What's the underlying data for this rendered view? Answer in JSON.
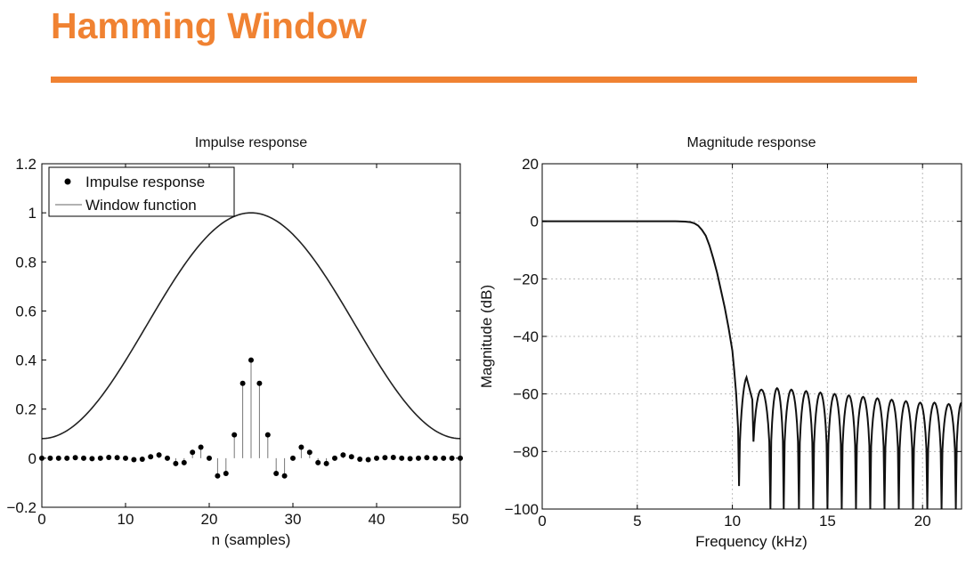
{
  "slide": {
    "title": "Hamming Window",
    "accent_color": "#f08232"
  },
  "chart_data": [
    {
      "type": "line",
      "title": "Impulse response",
      "xlabel": "n (samples)",
      "ylabel": "",
      "xlim": [
        0,
        50
      ],
      "ylim": [
        -0.2,
        1.2
      ],
      "xticks": [
        "0",
        "10",
        "20",
        "30",
        "40",
        "50"
      ],
      "yticks": [
        "−0.2",
        "0",
        "0.2",
        "0.4",
        "0.6",
        "0.8",
        "1",
        "1.2"
      ],
      "grid": false,
      "legend": {
        "placement": "top-left",
        "entries": [
          "Impulse response",
          "Window function"
        ]
      },
      "series": [
        {
          "name": "Impulse response",
          "style": "stem",
          "x": [
            0,
            1,
            2,
            3,
            4,
            5,
            6,
            7,
            8,
            9,
            10,
            11,
            12,
            13,
            14,
            15,
            16,
            17,
            18,
            19,
            20,
            21,
            22,
            23,
            24,
            25,
            26,
            27,
            28,
            29,
            30,
            31,
            32,
            33,
            34,
            35,
            36,
            37,
            38,
            39,
            40,
            41,
            42,
            43,
            44,
            45,
            46,
            47,
            48,
            49,
            50
          ],
          "y": [
            0,
            0,
            0,
            0,
            0.002,
            0,
            -0.002,
            0,
            0.003,
            0.002,
            0,
            -0.006,
            -0.004,
            0.006,
            0.013,
            0,
            -0.022,
            -0.018,
            0.024,
            0.045,
            0,
            -0.072,
            -0.062,
            0.095,
            0.305,
            0.4,
            0.305,
            0.095,
            -0.062,
            -0.072,
            0,
            0.045,
            0.024,
            -0.018,
            -0.022,
            0,
            0.013,
            0.006,
            -0.004,
            -0.006,
            0,
            0.002,
            0.003,
            0,
            -0.002,
            0,
            0.002,
            0,
            0,
            0,
            0
          ]
        },
        {
          "name": "Window function",
          "style": "line",
          "formula": "0.54 - 0.46*cos(2*pi*n/50)"
        }
      ]
    },
    {
      "type": "line",
      "title": "Magnitude response",
      "xlabel": "Frequency (kHz)",
      "ylabel": "Magnitude (dB)",
      "xlim": [
        0,
        22.05
      ],
      "ylim": [
        -100,
        20
      ],
      "xticks": [
        "0",
        "5",
        "10",
        "15",
        "20"
      ],
      "yticks": [
        "−100",
        "−80",
        "−60",
        "−40",
        "−20",
        "0",
        "20"
      ],
      "grid": true,
      "series": [
        {
          "name": "",
          "x": [
            0,
            7,
            7.5,
            7.8,
            8,
            8.2,
            8.4,
            8.6,
            8.8,
            9.0,
            9.2,
            9.4,
            9.6,
            9.8,
            10.0,
            10.1,
            10.2,
            10.3,
            10.35
          ],
          "y": [
            0,
            0,
            -0.1,
            -0.3,
            -0.7,
            -1.5,
            -3,
            -5,
            -8.5,
            -13,
            -18,
            -24,
            -30,
            -37,
            -45,
            -52,
            -60,
            -72,
            -92
          ],
          "sidelobes": {
            "boundaries": [
              10.35,
              11.05,
              12.0,
              12.7,
              13.5,
              14.25,
              15.0,
              15.75,
              16.5,
              17.25,
              18.0,
              18.75,
              19.5,
              20.25,
              21.0,
              21.75
            ],
            "peaks": [
              -54,
              -58.5,
              -58,
              -58.5,
              -59,
              -59.5,
              -60,
              -60.5,
              -61,
              -61.5,
              -62,
              -62.5,
              -63,
              -63,
              -63.5
            ],
            "null_depth": [
              -63,
              -100,
              -100,
              -100,
              -100,
              -100,
              -100,
              -100,
              -100,
              -100,
              -100,
              -100,
              -100,
              -100,
              -100
            ],
            "last_peak": -63
          }
        }
      ]
    }
  ]
}
